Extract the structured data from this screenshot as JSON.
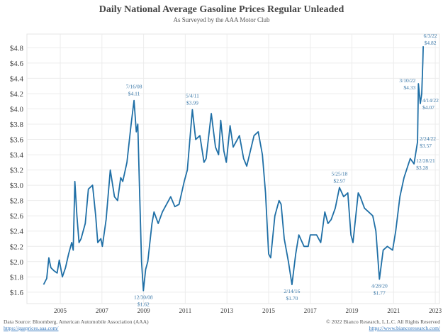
{
  "chart_data": {
    "type": "line",
    "title": "Daily National Average Gasoline Prices Regular Unleaded",
    "subtitle": "As Surveyed by the AAA Motor Club",
    "xlabel": "",
    "ylabel": "",
    "xlim": [
      2003.4,
      2023.2
    ],
    "ylim": [
      1.45,
      4.98
    ],
    "grid": true,
    "line_color": "#1f6fa6",
    "x_ticks": [
      "2005",
      "2007",
      "2009",
      "2011",
      "2013",
      "2015",
      "2017",
      "2019",
      "2021",
      "2023"
    ],
    "y_ticks": [
      "$1.6",
      "$1.8",
      "$2.0",
      "$2.2",
      "$2.4",
      "$2.6",
      "$2.8",
      "$3.0",
      "$3.2",
      "$3.4",
      "$3.6",
      "$3.8",
      "$4.0",
      "$4.2",
      "$4.4",
      "$4.6",
      "$4.8"
    ],
    "series": [
      {
        "x": [
          2004.2,
          2004.35,
          2004.45,
          2004.55,
          2004.7,
          2004.85,
          2004.95,
          2005.1,
          2005.25,
          2005.4,
          2005.55,
          2005.62,
          2005.7,
          2005.8,
          2005.9,
          2006.0,
          2006.2,
          2006.35,
          2006.55,
          2006.7,
          2006.8,
          2006.95,
          2007.02,
          2007.2,
          2007.4,
          2007.6,
          2007.75,
          2007.9,
          2008.0,
          2008.2,
          2008.4,
          2008.54,
          2008.65,
          2008.72,
          2008.8,
          2008.9,
          2008.99,
          2009.1,
          2009.2,
          2009.4,
          2009.5,
          2009.7,
          2009.9,
          2010.0,
          2010.3,
          2010.5,
          2010.7,
          2010.95,
          2011.1,
          2011.34,
          2011.5,
          2011.7,
          2011.9,
          2012.0,
          2012.25,
          2012.45,
          2012.6,
          2012.7,
          2012.85,
          2012.97,
          2013.15,
          2013.3,
          2013.5,
          2013.6,
          2013.8,
          2013.95,
          2014.3,
          2014.5,
          2014.7,
          2014.85,
          2015.0,
          2015.1,
          2015.3,
          2015.5,
          2015.6,
          2015.75,
          2015.95,
          2016.12,
          2016.3,
          2016.45,
          2016.7,
          2016.9,
          2017.0,
          2017.3,
          2017.5,
          2017.7,
          2017.85,
          2018.0,
          2018.2,
          2018.4,
          2018.6,
          2018.8,
          2018.95,
          2019.05,
          2019.3,
          2019.4,
          2019.6,
          2019.8,
          2020.0,
          2020.15,
          2020.32,
          2020.5,
          2020.7,
          2020.95,
          2021.1,
          2021.3,
          2021.5,
          2021.8,
          2021.98,
          2022.15,
          2022.19,
          2022.28,
          2022.35,
          2022.4,
          2022.42
        ],
        "y": [
          1.7,
          1.78,
          2.05,
          1.92,
          1.88,
          1.85,
          2.02,
          1.8,
          1.92,
          2.1,
          2.25,
          2.15,
          3.05,
          2.6,
          2.25,
          2.3,
          2.5,
          2.95,
          3.0,
          2.6,
          2.25,
          2.3,
          2.2,
          2.55,
          3.2,
          2.85,
          2.8,
          3.1,
          3.05,
          3.3,
          3.8,
          4.11,
          3.7,
          3.8,
          3.0,
          2.0,
          1.62,
          1.9,
          2.0,
          2.5,
          2.65,
          2.5,
          2.65,
          2.7,
          2.85,
          2.72,
          2.75,
          3.05,
          3.2,
          3.99,
          3.6,
          3.65,
          3.3,
          3.35,
          3.94,
          3.5,
          3.4,
          3.85,
          3.45,
          3.3,
          3.78,
          3.5,
          3.6,
          3.65,
          3.35,
          3.25,
          3.65,
          3.7,
          3.4,
          2.9,
          2.1,
          2.05,
          2.6,
          2.8,
          2.75,
          2.3,
          2.0,
          1.7,
          2.1,
          2.35,
          2.2,
          2.2,
          2.35,
          2.35,
          2.25,
          2.65,
          2.5,
          2.55,
          2.7,
          2.97,
          2.85,
          2.9,
          2.35,
          2.25,
          2.9,
          2.85,
          2.7,
          2.65,
          2.6,
          2.4,
          1.77,
          2.15,
          2.2,
          2.15,
          2.4,
          2.85,
          3.1,
          3.35,
          3.28,
          3.57,
          4.33,
          4.07,
          4.2,
          4.6,
          4.82
        ]
      }
    ],
    "annotations": [
      {
        "date": "7/16/08",
        "price": "$4.11",
        "x": 2008.54,
        "y": 4.11,
        "pos": "above"
      },
      {
        "date": "12/30/08",
        "price": "$1.62",
        "x": 2008.99,
        "y": 1.62,
        "pos": "below"
      },
      {
        "date": "5/4/11",
        "price": "$3.99",
        "x": 2011.34,
        "y": 3.99,
        "pos": "above"
      },
      {
        "date": "2/14/16",
        "price": "$1.70",
        "x": 2016.12,
        "y": 1.7,
        "pos": "below"
      },
      {
        "date": "5/25/18",
        "price": "$2.97",
        "x": 2018.4,
        "y": 2.97,
        "pos": "above"
      },
      {
        "date": "4/28/20",
        "price": "$1.77",
        "x": 2020.32,
        "y": 1.77,
        "pos": "below"
      },
      {
        "date": "12/28/21",
        "price": "$3.28",
        "x": 2021.98,
        "y": 3.28,
        "pos": "right"
      },
      {
        "date": "2/24/22",
        "price": "$3.57",
        "x": 2022.15,
        "y": 3.57,
        "pos": "right"
      },
      {
        "date": "3/10/22",
        "price": "$4.33",
        "x": 2022.19,
        "y": 4.33,
        "pos": "left"
      },
      {
        "date": "4/14/22",
        "price": "$4.07",
        "x": 2022.28,
        "y": 4.07,
        "pos": "right"
      },
      {
        "date": "6/3/22",
        "price": "$4.82",
        "x": 2022.42,
        "y": 4.82,
        "pos": "top"
      }
    ]
  },
  "footer": {
    "source": "Data Source: Bloomberg, American Automobile Association (AAA)",
    "source_url": "https://gasprices.aaa.com/",
    "copyright": "© 2022 Bianco Research, L.L.C. All Rights Reserved",
    "site_url": "https://www.biancoresearch.com/"
  }
}
